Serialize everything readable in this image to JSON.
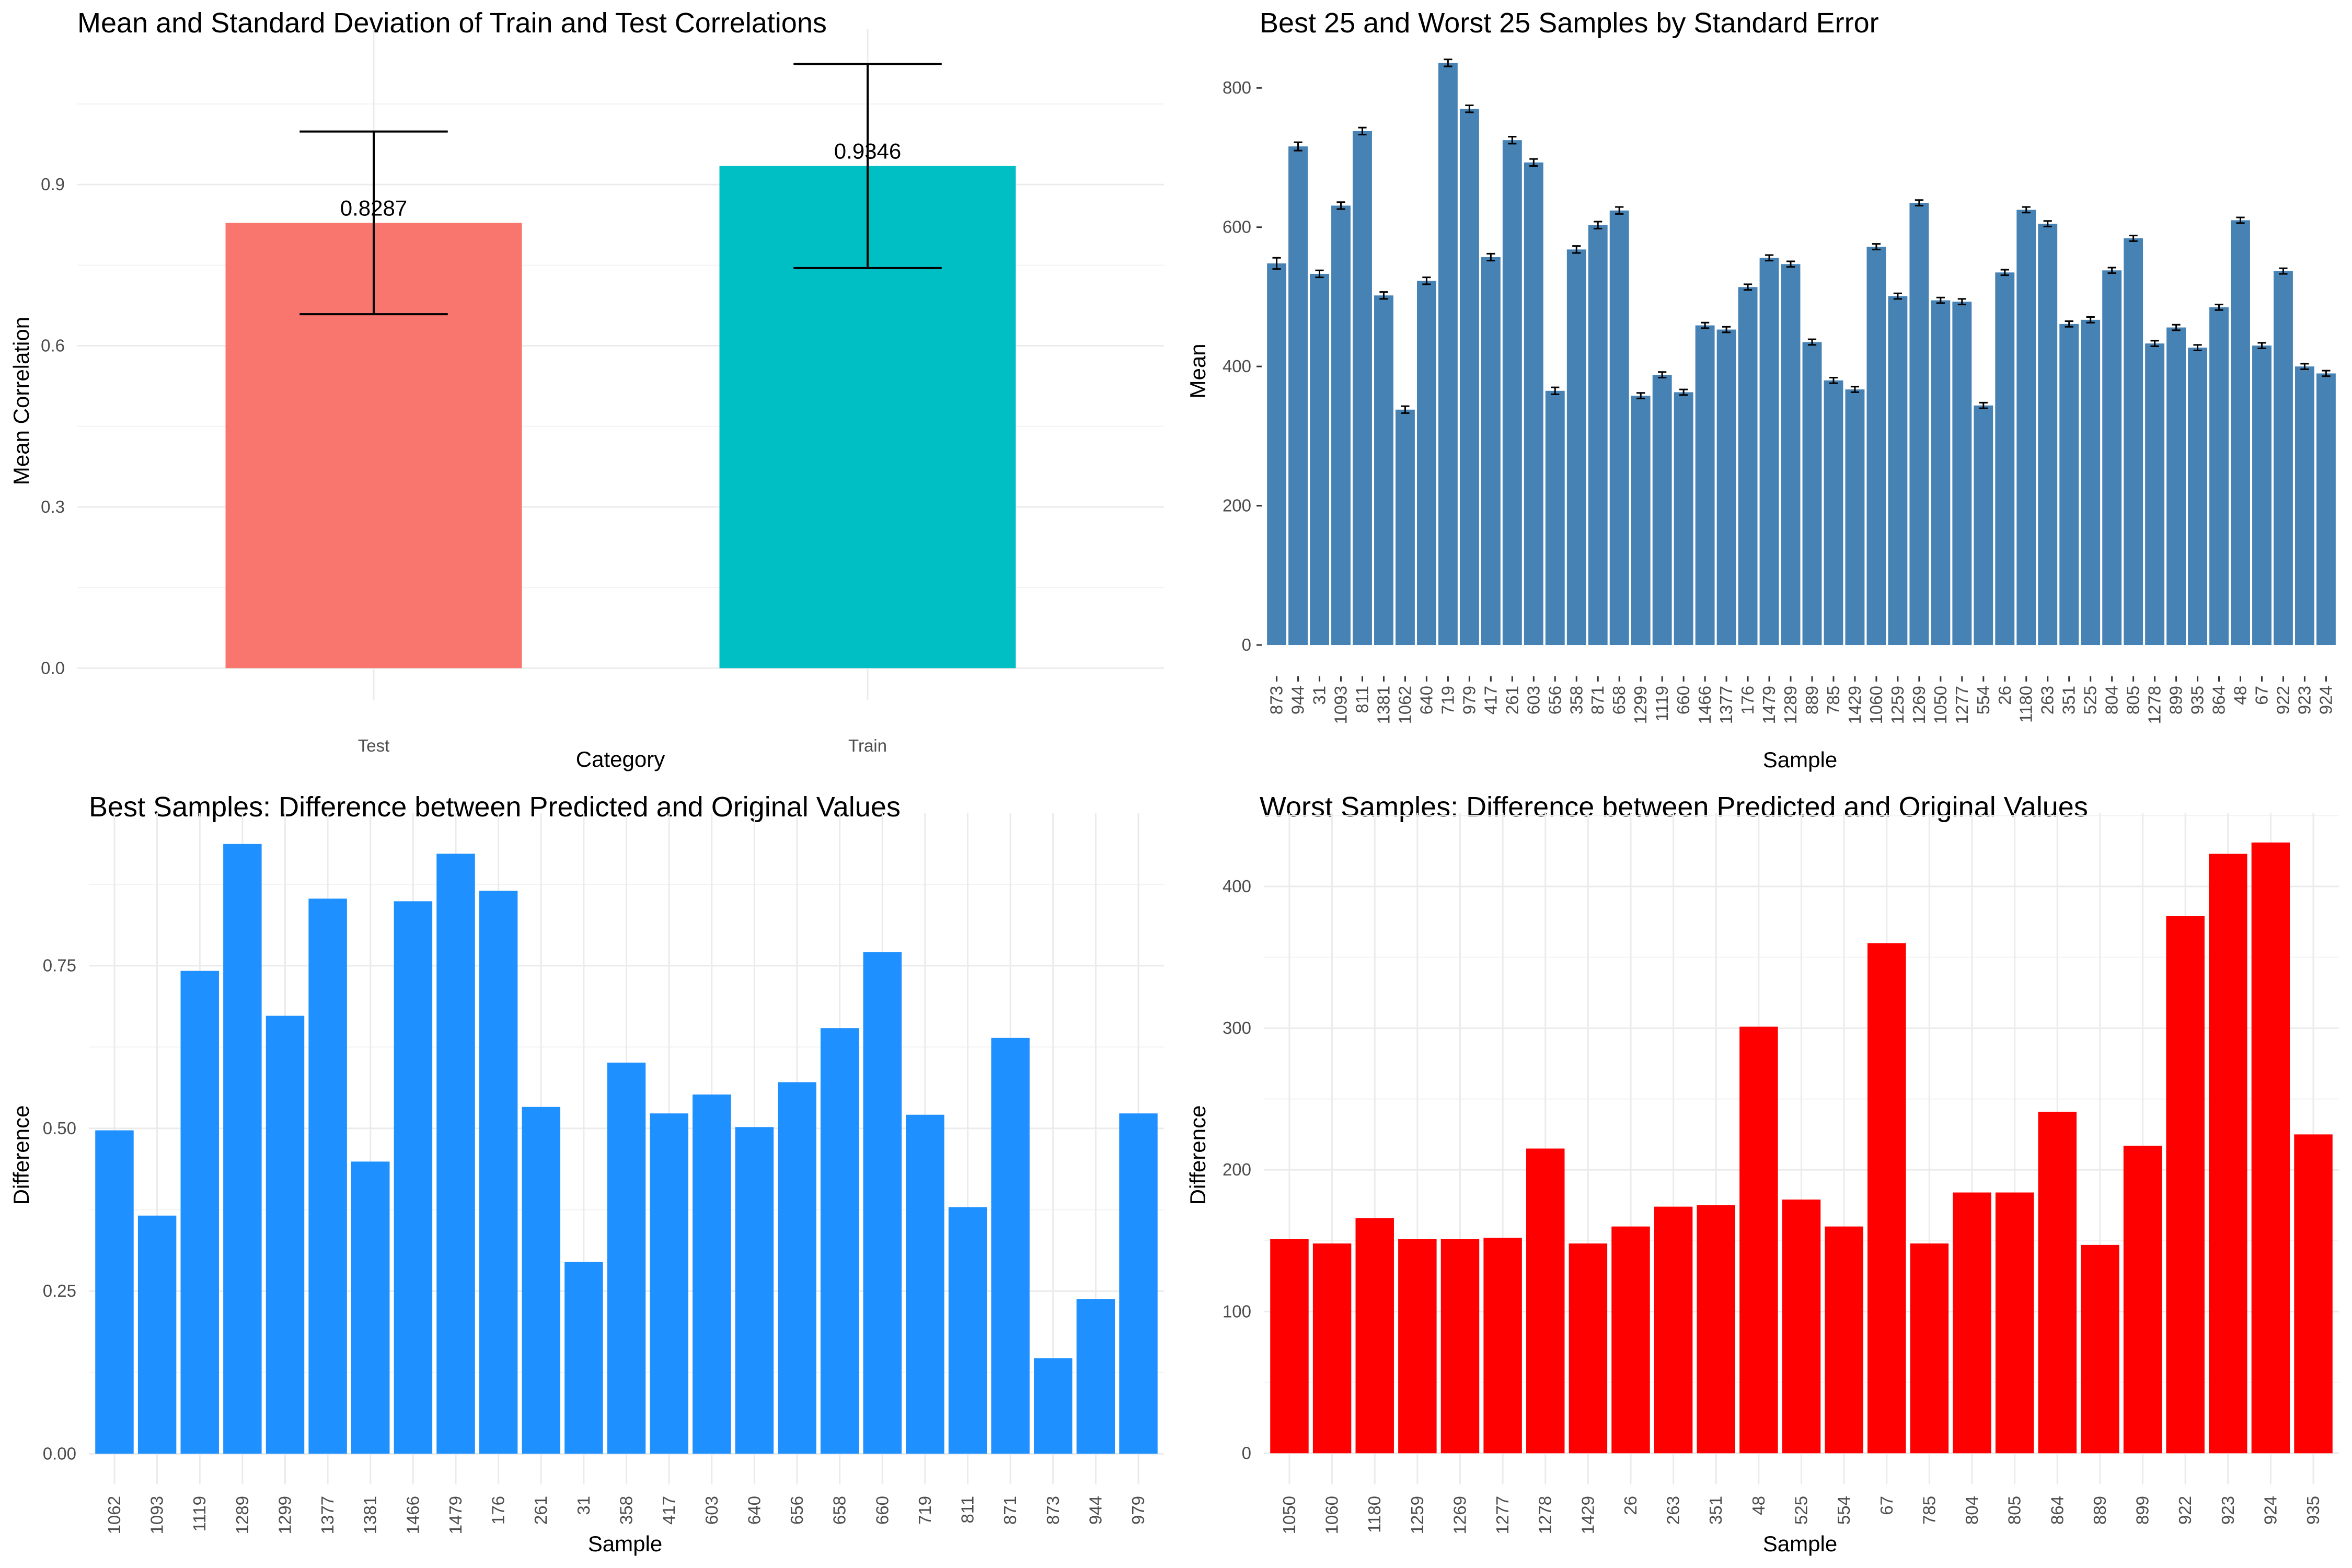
{
  "chart_data": [
    {
      "id": "p1",
      "type": "bar",
      "title": "Mean and Standard Deviation of Train and Test Correlations",
      "xlabel": "Category",
      "ylabel": "Mean Correlation",
      "categories": [
        "Test",
        "Train"
      ],
      "values": [
        0.8287,
        0.9346
      ],
      "value_labels": [
        "0.8287",
        "0.9346"
      ],
      "error": [
        0.17,
        0.19
      ],
      "colors": [
        "#F8766D",
        "#00BFC4"
      ],
      "yticks": [
        0.0,
        0.3,
        0.6,
        0.9
      ],
      "ytick_labels": [
        "0.0",
        "0.3",
        "0.6",
        "0.9"
      ],
      "ylim": [
        -0.06,
        1.19
      ],
      "grid": true
    },
    {
      "id": "p2",
      "type": "bar",
      "title": "Best 25 and Worst 25 Samples by Standard Error",
      "xlabel": "Sample",
      "ylabel": "Mean",
      "categories": [
        "873",
        "944",
        "31",
        "1093",
        "811",
        "1381",
        "1062",
        "640",
        "719",
        "979",
        "417",
        "261",
        "603",
        "656",
        "358",
        "871",
        "658",
        "1299",
        "1119",
        "660",
        "1466",
        "1377",
        "176",
        "1479",
        "1289",
        "889",
        "785",
        "1429",
        "1060",
        "1259",
        "1269",
        "1050",
        "1277",
        "554",
        "26",
        "1180",
        "263",
        "351",
        "525",
        "804",
        "805",
        "1278",
        "899",
        "935",
        "864",
        "48",
        "67",
        "922",
        "923",
        "924"
      ],
      "values": [
        548,
        716,
        533,
        631,
        738,
        502,
        338,
        523,
        836,
        770,
        557,
        725,
        693,
        365,
        568,
        603,
        624,
        358,
        388,
        363,
        459,
        453,
        514,
        556,
        547,
        435,
        380,
        367,
        572,
        501,
        635,
        495,
        493,
        344,
        535,
        625,
        605,
        461,
        467,
        538,
        584,
        433,
        456,
        427,
        485,
        610,
        430,
        537,
        400,
        390
      ],
      "error": [
        8,
        6,
        5,
        5,
        5,
        5,
        5,
        5,
        5,
        5,
        5,
        5,
        5,
        5,
        5,
        5,
        5,
        4,
        4,
        4,
        4,
        4,
        4,
        4,
        4,
        4,
        4,
        4,
        4,
        4,
        4,
        4,
        4,
        4,
        4,
        4,
        4,
        4,
        4,
        4,
        4,
        4,
        4,
        4,
        4,
        4,
        4,
        4,
        4,
        4
      ],
      "color": "#4682B4",
      "yticks": [
        0,
        200,
        400,
        600,
        800
      ],
      "ytick_labels": [
        "0",
        "200",
        "400",
        "600",
        "800"
      ],
      "ylim": [
        -42,
        885
      ],
      "grid": false
    },
    {
      "id": "p3",
      "type": "bar",
      "title": "Best Samples: Difference between Predicted and Original Values",
      "xlabel": "Sample",
      "ylabel": "Difference",
      "categories": [
        "1062",
        "1093",
        "1119",
        "1289",
        "1299",
        "1377",
        "1381",
        "1466",
        "1479",
        "176",
        "261",
        "31",
        "358",
        "417",
        "603",
        "640",
        "656",
        "658",
        "660",
        "719",
        "811",
        "871",
        "873",
        "944",
        "979"
      ],
      "values": [
        0.497,
        0.366,
        0.742,
        0.937,
        0.673,
        0.853,
        0.449,
        0.849,
        0.922,
        0.865,
        0.533,
        0.295,
        0.601,
        0.523,
        0.552,
        0.502,
        0.571,
        0.654,
        0.771,
        0.521,
        0.379,
        0.639,
        0.147,
        0.238,
        0.523
      ],
      "color": "#1E90FF",
      "yticks": [
        0.0,
        0.25,
        0.5,
        0.75
      ],
      "ytick_labels": [
        "0.00",
        "0.25",
        "0.50",
        "0.75"
      ],
      "ylim": [
        -0.047,
        0.985
      ],
      "grid": true
    },
    {
      "id": "p4",
      "type": "bar",
      "title": "Worst Samples: Difference between Predicted and Original Values",
      "xlabel": "Sample",
      "ylabel": "Difference",
      "categories": [
        "1050",
        "1060",
        "1180",
        "1259",
        "1269",
        "1277",
        "1278",
        "1429",
        "26",
        "263",
        "351",
        "48",
        "525",
        "554",
        "67",
        "785",
        "804",
        "805",
        "864",
        "889",
        "899",
        "922",
        "923",
        "924",
        "935"
      ],
      "values": [
        151,
        148,
        166,
        151,
        151,
        152,
        215,
        148,
        160,
        174,
        175,
        301,
        179,
        160,
        360,
        148,
        184,
        184,
        241,
        147,
        217,
        379,
        423,
        431,
        225
      ],
      "color": "#FF0000",
      "yticks": [
        0,
        100,
        200,
        300,
        400
      ],
      "ytick_labels": [
        "0",
        "100",
        "200",
        "300",
        "400"
      ],
      "ylim": [
        -22,
        452
      ],
      "grid": true
    }
  ]
}
